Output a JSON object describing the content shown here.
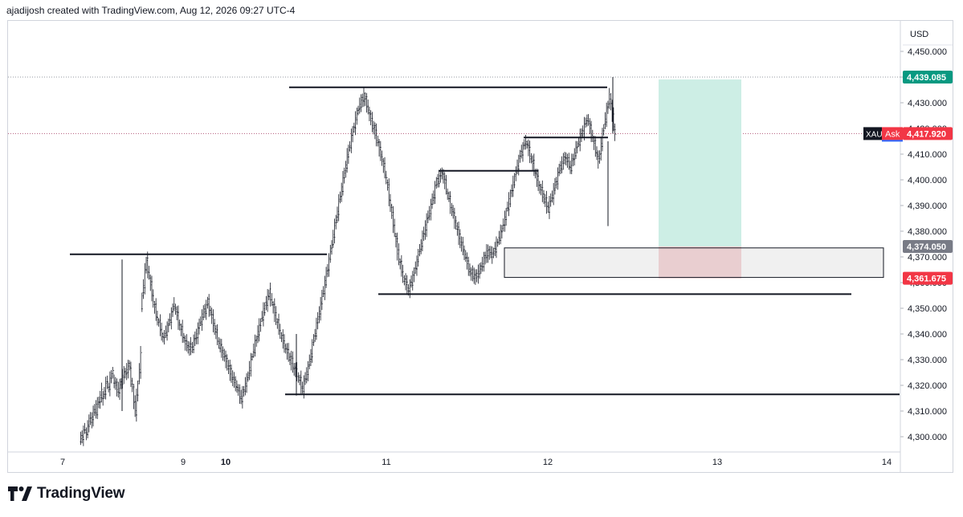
{
  "header": {
    "attribution": "ajadijosh created with TradingView.com, Aug 12, 2026 09:27 UTC-4"
  },
  "footer": {
    "brand": "TradingView"
  },
  "chart_data": {
    "type": "candlestick",
    "currency": "USD",
    "symbol": "XAU",
    "ylim": [
      4295,
      4455
    ],
    "y_ticks": [
      "4,450.000",
      "4,440.000",
      "4,430.000",
      "4,420.000",
      "4,410.000",
      "4,400.000",
      "4,390.000",
      "4,380.000",
      "4,370.000",
      "4,360.000",
      "4,350.000",
      "4,340.000",
      "4,330.000",
      "4,320.000",
      "4,310.000",
      "4,300.000"
    ],
    "x_ticks": [
      {
        "label": "7",
        "bold": false
      },
      {
        "label": "9",
        "bold": false
      },
      {
        "label": "10",
        "bold": true
      },
      {
        "label": "11",
        "bold": false
      },
      {
        "label": "12",
        "bold": false
      },
      {
        "label": "13",
        "bold": false
      },
      {
        "label": "14",
        "bold": false
      }
    ],
    "price_labels": [
      {
        "value": "4,439.085",
        "color": "#089981",
        "text_color": "#ffffff"
      },
      {
        "value": "4,417.920",
        "color": "#f23645",
        "text_color": "#ffffff",
        "tag": "Ask",
        "symbol_tag": "XAU"
      },
      {
        "value": "4,374.050",
        "color": "#787b86",
        "text_color": "#ffffff"
      },
      {
        "value": "4,361.675",
        "color": "#f23645",
        "text_color": "#ffffff"
      }
    ],
    "horizontal_levels": [
      4371,
      4436,
      4403.5,
      4416.5,
      4355.5,
      4316.5,
      4440,
      4418
    ],
    "position": {
      "entry": 4374.05,
      "target": 4439.085,
      "stop": 4361.675,
      "profit_color": "#cdeee5",
      "loss_color": "#f5d0d3"
    },
    "zone": {
      "top": 4373.5,
      "bottom": 4362
    },
    "price_path": [
      [
        4298,
        4303
      ],
      [
        4300,
        4308
      ],
      [
        4306,
        4312
      ],
      [
        4310,
        4318
      ],
      [
        4314,
        4322
      ],
      [
        4318,
        4326
      ],
      [
        4322,
        4318
      ],
      [
        4318,
        4325
      ],
      [
        4324,
        4328
      ],
      [
        4326,
        4310
      ],
      [
        4310,
        4332
      ],
      [
        4350,
        4369
      ],
      [
        4368,
        4356
      ],
      [
        4355,
        4345
      ],
      [
        4346,
        4338
      ],
      [
        4338,
        4344
      ],
      [
        4344,
        4352
      ],
      [
        4351,
        4343
      ],
      [
        4343,
        4336
      ],
      [
        4336,
        4334
      ],
      [
        4334,
        4340
      ],
      [
        4340,
        4347
      ],
      [
        4347,
        4352
      ],
      [
        4352,
        4344
      ],
      [
        4344,
        4336
      ],
      [
        4336,
        4331
      ],
      [
        4331,
        4325
      ],
      [
        4325,
        4320
      ],
      [
        4320,
        4315
      ],
      [
        4315,
        4322
      ],
      [
        4322,
        4332
      ],
      [
        4332,
        4341
      ],
      [
        4341,
        4349
      ],
      [
        4349,
        4356
      ],
      [
        4356,
        4348
      ],
      [
        4348,
        4340
      ],
      [
        4340,
        4334
      ],
      [
        4334,
        4329
      ],
      [
        4329,
        4324
      ],
      [
        4324,
        4319
      ],
      [
        4319,
        4327
      ],
      [
        4327,
        4338
      ],
      [
        4338,
        4349
      ],
      [
        4349,
        4360
      ],
      [
        4360,
        4372
      ],
      [
        4372,
        4385
      ],
      [
        4385,
        4397
      ],
      [
        4397,
        4409
      ],
      [
        4409,
        4419
      ],
      [
        4419,
        4428
      ],
      [
        4428,
        4433
      ],
      [
        4433,
        4425
      ],
      [
        4425,
        4418
      ],
      [
        4418,
        4410
      ],
      [
        4410,
        4400
      ],
      [
        4400,
        4386
      ],
      [
        4386,
        4372
      ],
      [
        4372,
        4362
      ],
      [
        4362,
        4357
      ],
      [
        4357,
        4364
      ],
      [
        4364,
        4373
      ],
      [
        4373,
        4382
      ],
      [
        4382,
        4390
      ],
      [
        4390,
        4399
      ],
      [
        4399,
        4403
      ],
      [
        4403,
        4394
      ],
      [
        4394,
        4386
      ],
      [
        4386,
        4378
      ],
      [
        4378,
        4371
      ],
      [
        4371,
        4364
      ],
      [
        4364,
        4362
      ],
      [
        4362,
        4366
      ],
      [
        4366,
        4372
      ],
      [
        4372,
        4371
      ],
      [
        4371,
        4376
      ],
      [
        4376,
        4383
      ],
      [
        4383,
        4392
      ],
      [
        4392,
        4401
      ],
      [
        4401,
        4410
      ],
      [
        4410,
        4415
      ],
      [
        4415,
        4408
      ],
      [
        4408,
        4400
      ],
      [
        4400,
        4394
      ],
      [
        4394,
        4389
      ],
      [
        4389,
        4396
      ],
      [
        4396,
        4404
      ],
      [
        4404,
        4409
      ],
      [
        4409,
        4405
      ],
      [
        4405,
        4412
      ],
      [
        4412,
        4418
      ],
      [
        4418,
        4424
      ],
      [
        4424,
        4416
      ],
      [
        4416,
        4407
      ],
      [
        4407,
        4421
      ],
      [
        4421,
        4433
      ],
      [
        4433,
        4417
      ]
    ]
  }
}
